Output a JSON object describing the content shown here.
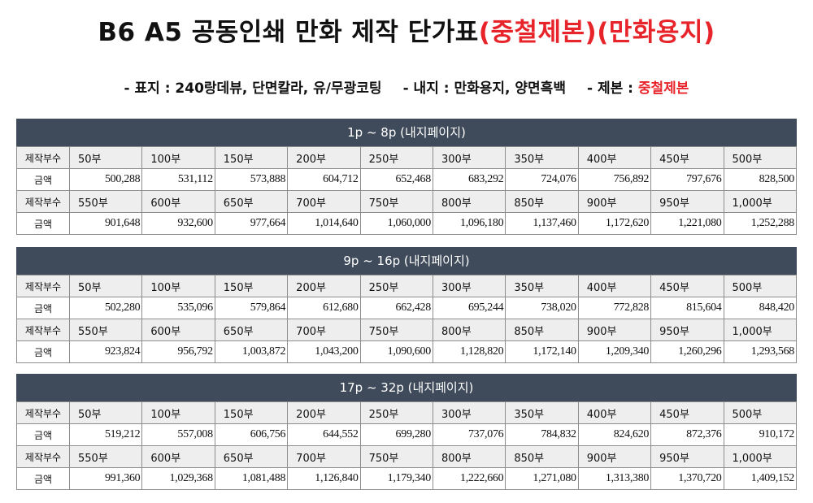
{
  "title": {
    "main": "B6 A5 공동인쇄 만화 제작 단가표",
    "highlight": "(중철제본)(만화용지)"
  },
  "subtitle": {
    "cover": "- 표지 : 240랑데뷰, 단면칼라, 유/무광코팅",
    "inner": "- 내지 : 만화용지, 양면흑백",
    "binding_label": "- 제본 :",
    "binding_value": "중철제본"
  },
  "colors": {
    "header_bg": "#3f4b5b",
    "accent_red": "#e8242b",
    "label_row_bg": "#eeeeee"
  },
  "sections": [
    {
      "title": "1p ~ 8p (내지페이지)",
      "rows": [
        {
          "label": "제작부수",
          "values": [
            "50부",
            "100부",
            "150부",
            "200부",
            "250부",
            "300부",
            "350부",
            "400부",
            "450부",
            "500부"
          ]
        },
        {
          "label": "금액",
          "values": [
            "500,288",
            "531,112",
            "573,888",
            "604,712",
            "652,468",
            "683,292",
            "724,076",
            "756,892",
            "797,676",
            "828,500"
          ]
        },
        {
          "label": "제작부수",
          "values": [
            "550부",
            "600부",
            "650부",
            "700부",
            "750부",
            "800부",
            "850부",
            "900부",
            "950부",
            "1,000부"
          ]
        },
        {
          "label": "금액",
          "values": [
            "901,648",
            "932,600",
            "977,664",
            "1,014,640",
            "1,060,000",
            "1,096,180",
            "1,137,460",
            "1,172,620",
            "1,221,080",
            "1,252,288"
          ]
        }
      ]
    },
    {
      "title": "9p ~ 16p (내지페이지)",
      "rows": [
        {
          "label": "제작부수",
          "values": [
            "50부",
            "100부",
            "150부",
            "200부",
            "250부",
            "300부",
            "350부",
            "400부",
            "450부",
            "500부"
          ]
        },
        {
          "label": "금액",
          "values": [
            "502,280",
            "535,096",
            "579,864",
            "612,680",
            "662,428",
            "695,244",
            "738,020",
            "772,828",
            "815,604",
            "848,420"
          ]
        },
        {
          "label": "제작부수",
          "values": [
            "550부",
            "600부",
            "650부",
            "700부",
            "750부",
            "800부",
            "850부",
            "900부",
            "950부",
            "1,000부"
          ]
        },
        {
          "label": "금액",
          "values": [
            "923,824",
            "956,792",
            "1,003,872",
            "1,043,200",
            "1,090,600",
            "1,128,820",
            "1,172,140",
            "1,209,340",
            "1,260,296",
            "1,293,568"
          ]
        }
      ]
    },
    {
      "title": "17p ~ 32p (내지페이지)",
      "rows": [
        {
          "label": "제작부수",
          "values": [
            "50부",
            "100부",
            "150부",
            "200부",
            "250부",
            "300부",
            "350부",
            "400부",
            "450부",
            "500부"
          ]
        },
        {
          "label": "금액",
          "values": [
            "519,212",
            "557,008",
            "606,756",
            "644,552",
            "699,280",
            "737,076",
            "784,832",
            "824,620",
            "872,376",
            "910,172"
          ]
        },
        {
          "label": "제작부수",
          "values": [
            "550부",
            "600부",
            "650부",
            "700부",
            "750부",
            "800부",
            "850부",
            "900부",
            "950부",
            "1,000부"
          ]
        },
        {
          "label": "금액",
          "values": [
            "991,360",
            "1,029,368",
            "1,081,488",
            "1,126,840",
            "1,179,340",
            "1,222,660",
            "1,271,080",
            "1,313,380",
            "1,370,720",
            "1,409,152"
          ]
        }
      ]
    }
  ]
}
